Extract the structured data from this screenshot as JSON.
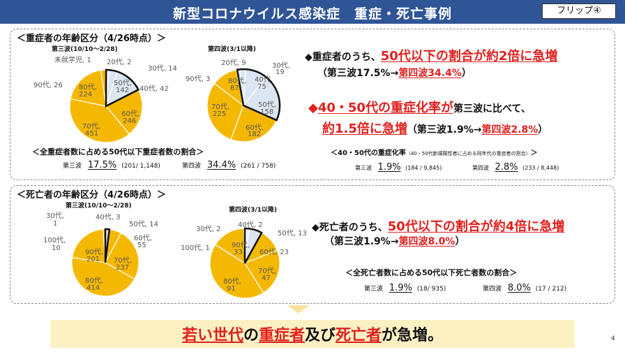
{
  "title": "新型コロナウイルス感染症　重症・死亡事例",
  "flip": "フリップ④",
  "page_number": "4",
  "colors": {
    "header": "#2f5597",
    "orange": "#f5b800",
    "young": "#dce6f2",
    "accent_red": "#e0201d"
  },
  "severe": {
    "heading": "＜重症者の年齢区分（4/26時点）＞",
    "wave3_title": "第三波(10/10～2/28)",
    "wave4_title": "第四波(3/1以降)",
    "labels_w3": {
      "preschool": "未就学児, 1",
      "d20": "20代, 2",
      "d30": "30代, 14",
      "d40": "40代, 42",
      "d50a": "50代,",
      "d50b": "142",
      "d60a": "60代,",
      "d60b": "246",
      "d70a": "70代,",
      "d70b": "451",
      "d80a": "80代,",
      "d80b": "224",
      "d90": "90代, 26"
    },
    "labels_w4": {
      "d20": "20代, 9",
      "d30a": "30代,",
      "d30b": "19",
      "d40a": "40代,",
      "d40b": "75",
      "d50a": "50代,",
      "d50b": "158",
      "d60a": "60代,",
      "d60b": "182",
      "d70a": "70代,",
      "d70b": "225",
      "d80a": "80代,",
      "d80b": "87",
      "d90": "90代, 3"
    },
    "ratio_caption": "＜全重症者数に占める50代以下重症者数の割合＞",
    "w3_label": "第三波",
    "w3_pct": "17.5%",
    "w3_detail": "(201/ 1,148)",
    "w4_label": "第四波",
    "w4_pct": "34.4%",
    "w4_detail": "(261 / 758)",
    "point1_prefix": "◆重症者のうち、",
    "point1_red": "50代以下の割合が約2倍に急増",
    "point1_sub_a": "（第三波17.5%→",
    "point1_sub_red": "第四波34.4%",
    "point1_sub_b": "）",
    "point2_diamond": "◆",
    "point2_red": "40・50代の重症化率が",
    "point2_tail": "第三波に比べて、",
    "point2_line2_red": "約1.5倍に急増",
    "point2_line2_a": "（第三波1.9%→",
    "point2_line2_red2": "第四波2.8%",
    "point2_line2_b": "）",
    "rate_caption": "＜40・50代の重症化率",
    "rate_caption_small": "（40・50代新規陽性者に占める同年代の重症者の割合）",
    "rate_caption_end": "＞",
    "rate_w3_label": "第三波",
    "rate_w3_pct": "1.9%",
    "rate_w3_detail": "(184 / 9,845)",
    "rate_w4_label": "第四波",
    "rate_w4_pct": "2.8%",
    "rate_w4_detail": "(233 / 8,448)"
  },
  "deaths": {
    "heading": "＜死亡者の年齢区分（4/26時点）＞",
    "wave3_title": "第三波(10/10～2/28)",
    "wave4_title": "第四波(3/1以降)",
    "labels_w3": {
      "d30a": "30代,",
      "d30b": "1",
      "d40": "40代, 3",
      "d50": "50代, 14",
      "d60a": "60代,",
      "d60b": "55",
      "d70a": "70代,",
      "d70b": "237",
      "d80a": "80代,",
      "d80b": "414",
      "d90a": "90代,",
      "d90b": "201",
      "d100a": "100代,",
      "d100b": "10"
    },
    "labels_w4": {
      "d30": "30代, 2",
      "d40": "40代, 2",
      "d50": "50代, 13",
      "d60": "60代, 23",
      "d70a": "70代,",
      "d70b": "47",
      "d80a": "80代,",
      "d80b": "91",
      "d90a": "90代,",
      "d90b": "33",
      "d100": "100代, 1"
    },
    "point_prefix": "◆死亡者のうち、",
    "point_red": "50代以下の割合が約4倍に急増",
    "point_sub_a": "（第三波1.9%→",
    "point_sub_red": "第四波8.0%",
    "point_sub_b": "）",
    "ratio_caption": "＜全死亡者数に占める50代以下死亡者数の割合＞",
    "w3_label": "第三波",
    "w3_pct": "1.9%",
    "w3_detail": "(18/ 935)",
    "w4_label": "第四波",
    "w4_pct": "8.0%",
    "w4_detail": "(17 / 212)"
  },
  "banner": {
    "red": "若い世代",
    "mid": "の",
    "red2": "重症者",
    "mid2": "及び",
    "red3": "死亡者",
    "tail": "が急増。"
  },
  "chart_data": [
    {
      "type": "pie",
      "title": "第三波(10/10～2/28)",
      "categories": [
        "未就学児",
        "20代",
        "30代",
        "40代",
        "50代",
        "60代",
        "70代",
        "80代",
        "90代"
      ],
      "values": [
        1,
        2,
        14,
        42,
        142,
        246,
        451,
        224,
        26
      ]
    },
    {
      "type": "pie",
      "title": "第四波(3/1以降)",
      "categories": [
        "20代",
        "30代",
        "40代",
        "50代",
        "60代",
        "70代",
        "80代",
        "90代"
      ],
      "values": [
        9,
        19,
        75,
        158,
        182,
        225,
        87,
        3
      ]
    },
    {
      "type": "pie",
      "title": "第三波(10/10～2/28)",
      "categories": [
        "30代",
        "40代",
        "50代",
        "60代",
        "70代",
        "80代",
        "90代",
        "100代"
      ],
      "values": [
        1,
        3,
        14,
        55,
        237,
        414,
        201,
        10
      ]
    },
    {
      "type": "pie",
      "title": "第四波(3/1以降)",
      "categories": [
        "30代",
        "40代",
        "50代",
        "60代",
        "70代",
        "80代",
        "90代",
        "100代"
      ],
      "values": [
        2,
        2,
        13,
        23,
        47,
        91,
        33,
        1
      ]
    }
  ]
}
